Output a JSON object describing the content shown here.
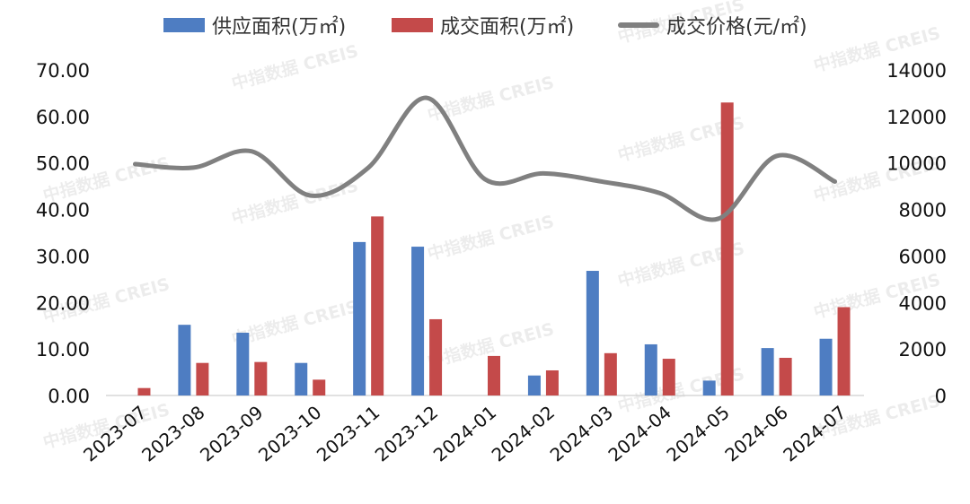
{
  "chart_data": {
    "type": "bar+line",
    "categories": [
      "2023-07",
      "2023-08",
      "2023-09",
      "2023-10",
      "2023-11",
      "2023-12",
      "2024-01",
      "2024-02",
      "2024-03",
      "2024-04",
      "2024-05",
      "2024-06",
      "2024-07"
    ],
    "series": [
      {
        "name": "供应面积(万㎡)",
        "type": "bar",
        "axis": "left",
        "color": "#4e7dc2",
        "values": [
          0,
          15.2,
          13.5,
          7.0,
          33.0,
          32.0,
          0,
          4.3,
          26.8,
          11.0,
          3.2,
          10.2,
          12.2
        ]
      },
      {
        "name": "成交面积(万㎡)",
        "type": "bar",
        "axis": "left",
        "color": "#c44a4a",
        "values": [
          1.6,
          7.0,
          7.2,
          3.4,
          38.5,
          16.4,
          8.5,
          5.4,
          9.1,
          7.9,
          63.0,
          8.1,
          19.0
        ]
      },
      {
        "name": "成交价格(元/㎡)",
        "type": "line",
        "axis": "right",
        "color": "#808080",
        "values": [
          9950,
          9800,
          10500,
          8600,
          9800,
          12800,
          9300,
          9550,
          9200,
          8700,
          7600,
          10300,
          9200
        ]
      }
    ],
    "y_left": {
      "min": 0,
      "max": 70,
      "step": 10,
      "ticks": [
        "0.00",
        "10.00",
        "20.00",
        "30.00",
        "40.00",
        "50.00",
        "60.00",
        "70.00"
      ]
    },
    "y_right": {
      "min": 0,
      "max": 14000,
      "step": 2000,
      "ticks": [
        "0",
        "2000",
        "4000",
        "6000",
        "8000",
        "10000",
        "12000",
        "14000"
      ]
    },
    "legend_position": "top",
    "grid": false
  },
  "watermark": "中指数据 CREIS"
}
